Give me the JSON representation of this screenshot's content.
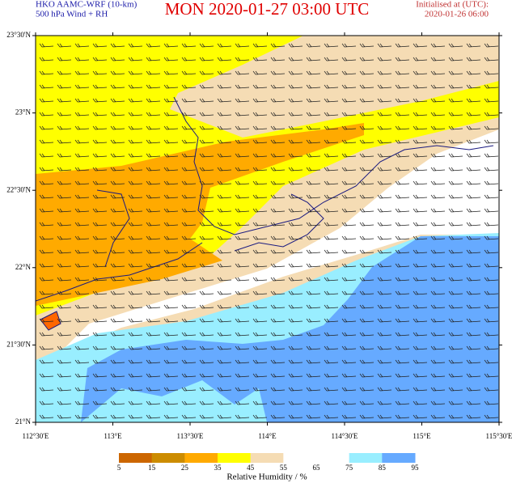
{
  "header": {
    "model_lines": [
      "HKO AAMC-WRF (10-km)",
      "500 hPa Wind + RH"
    ],
    "title": "MON  2020-01-27 03:00 UTC",
    "init_lines": [
      "Initialised at (UTC):",
      "2020-01-26 06:00"
    ]
  },
  "map": {
    "lat_labels": [
      "23°30'N",
      "23°N",
      "22°30'N",
      "22°N",
      "21°30'N",
      "21°N"
    ],
    "lon_labels": [
      "112°30'E",
      "113°E",
      "113°30'E",
      "114°E",
      "114°30'E",
      "115°E",
      "115°30'E"
    ]
  },
  "colorbar": {
    "title": "Relative Humidity / %",
    "labels": [
      "5",
      "15",
      "25",
      "35",
      "45",
      "55",
      "65",
      "75",
      "85",
      "95"
    ],
    "colors": [
      "#cc6600",
      "#cc8c00",
      "#ffaa00",
      "#ffff00",
      "#f5dcb4",
      "#ffffff",
      "#ffffff",
      "#99eeff",
      "#66aaff"
    ]
  }
}
